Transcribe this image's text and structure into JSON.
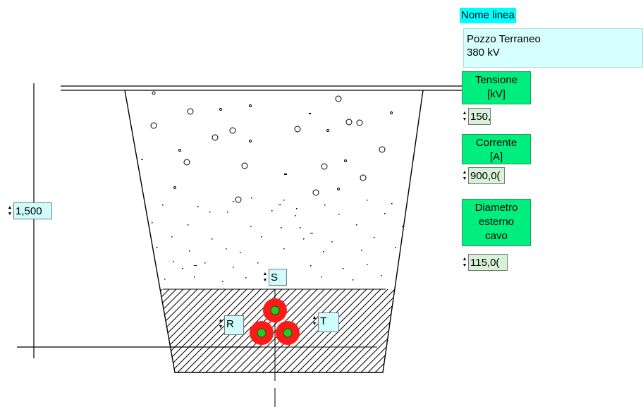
{
  "line_panel": {
    "title_label": "Nome linea",
    "line_name": "Pozzo Terraneo\n380 kV"
  },
  "params": {
    "voltage_label": "Tensione\n[kV]",
    "voltage_value": "150,",
    "current_label": "Corrente\n[A]",
    "current_value": "900,0(",
    "diameter_label": "Diametro\nesterno\ncavo",
    "diameter_value": "115,0("
  },
  "depth": {
    "value": "1,500"
  },
  "phases": {
    "s": "S",
    "r": "R",
    "t": "T"
  },
  "colors": {
    "cable_outer": "#ff1a1a",
    "cable_core": "#22cc22",
    "label_cyan": "#00ffff",
    "button_green": "#00ee7e"
  }
}
